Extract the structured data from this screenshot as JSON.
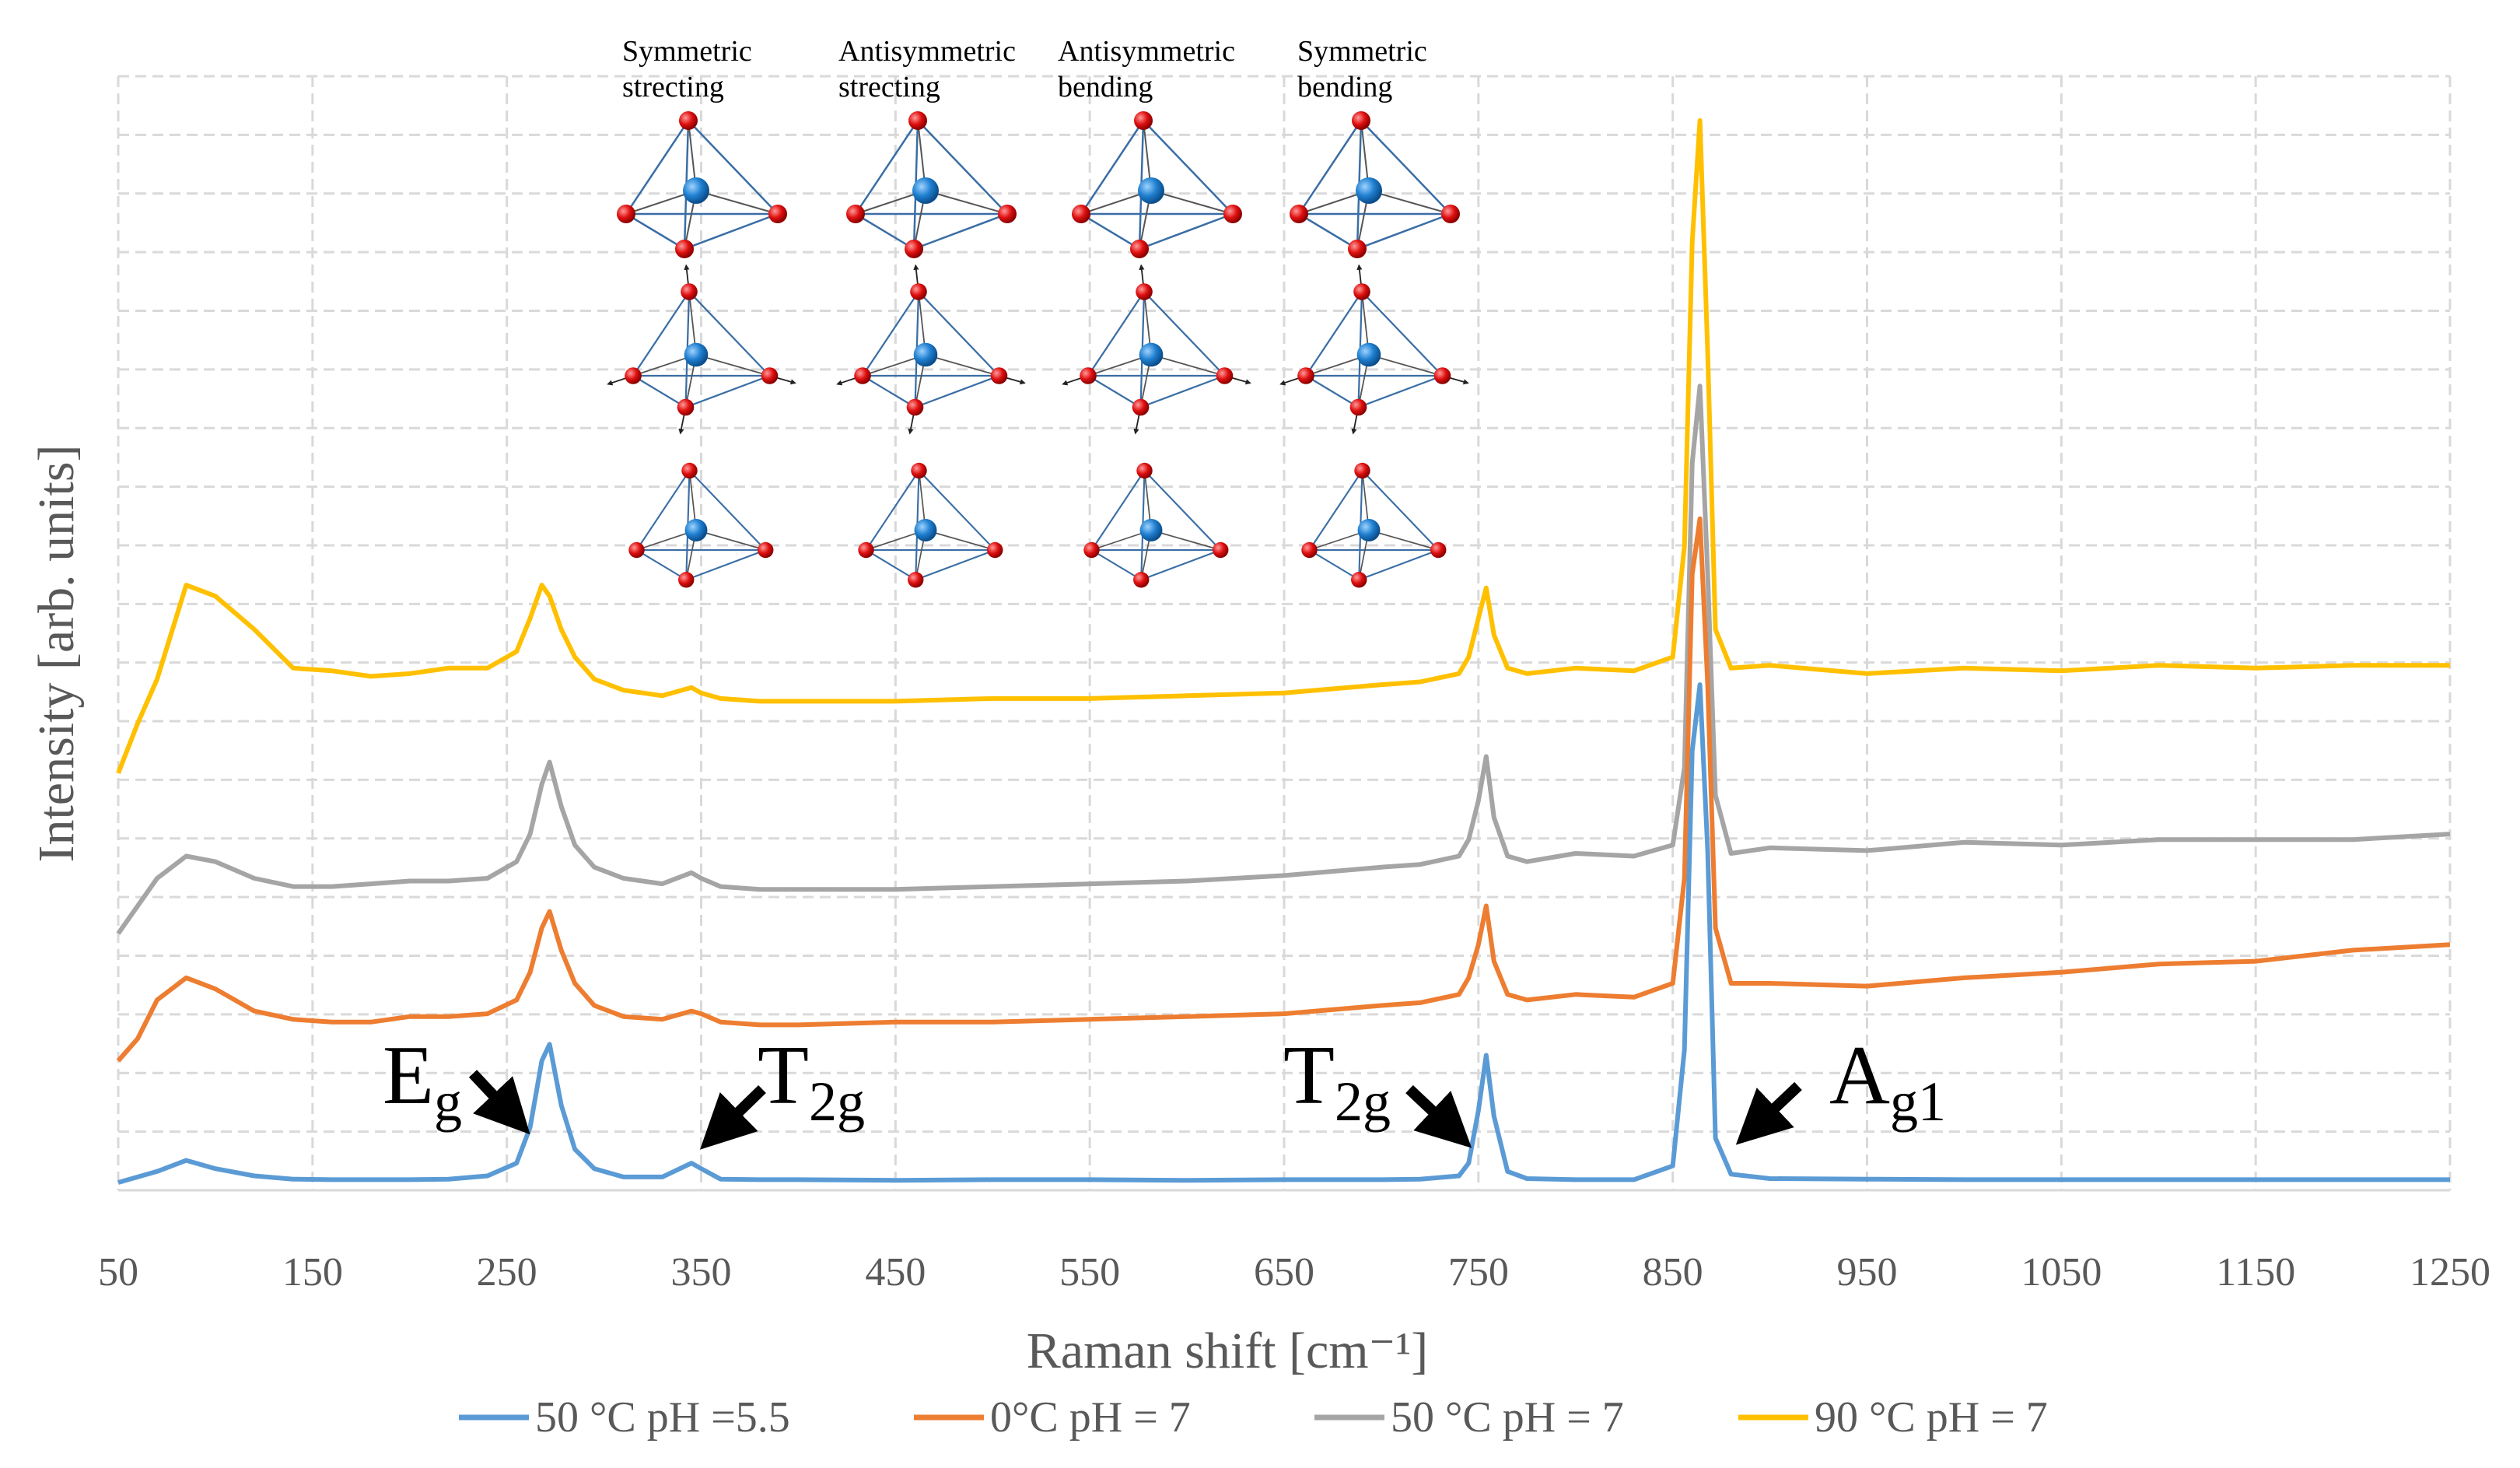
{
  "chart_data": {
    "type": "line",
    "title": "",
    "xlabel": "Raman shift [cm⁻¹]",
    "ylabel": "Intensity [arb. units]",
    "xlim": [
      50,
      1250
    ],
    "x_ticks": [
      "50",
      "150",
      "250",
      "350",
      "450",
      "550",
      "650",
      "750",
      "850",
      "950",
      "1050",
      "1150",
      "1250"
    ],
    "y_ticks_labeled": false,
    "grid": true,
    "legend_position": "bottom",
    "x": [
      50,
      60,
      70,
      85,
      100,
      120,
      140,
      160,
      180,
      200,
      220,
      240,
      255,
      262,
      268,
      272,
      278,
      285,
      295,
      310,
      330,
      345,
      350,
      360,
      380,
      400,
      450,
      500,
      550,
      600,
      650,
      700,
      720,
      740,
      745,
      750,
      754,
      758,
      765,
      775,
      800,
      830,
      850,
      856,
      860,
      864,
      868,
      872,
      880,
      900,
      950,
      1000,
      1050,
      1100,
      1150,
      1200,
      1250
    ],
    "series": [
      {
        "name": "50 °C pH =5.5",
        "color": "#5b9bd5",
        "values": [
          0.0,
          0.1,
          0.2,
          0.4,
          0.25,
          0.12,
          0.06,
          0.05,
          0.05,
          0.05,
          0.06,
          0.12,
          0.35,
          1.0,
          2.2,
          2.5,
          1.4,
          0.6,
          0.25,
          0.1,
          0.1,
          0.35,
          0.25,
          0.06,
          0.05,
          0.05,
          0.04,
          0.05,
          0.05,
          0.04,
          0.05,
          0.05,
          0.06,
          0.12,
          0.35,
          1.3,
          2.3,
          1.2,
          0.2,
          0.07,
          0.05,
          0.05,
          0.3,
          2.4,
          7.8,
          9.0,
          6.0,
          0.8,
          0.15,
          0.07,
          0.06,
          0.05,
          0.05,
          0.05,
          0.05,
          0.05,
          0.05
        ]
      },
      {
        "name": "0°C pH = 7",
        "color": "#ed7d31",
        "values": [
          2.2,
          2.6,
          3.3,
          3.7,
          3.5,
          3.1,
          2.95,
          2.9,
          2.9,
          3.0,
          3.0,
          3.05,
          3.3,
          3.8,
          4.6,
          4.9,
          4.2,
          3.6,
          3.2,
          3.0,
          2.95,
          3.1,
          3.05,
          2.9,
          2.85,
          2.85,
          2.9,
          2.9,
          2.95,
          3.0,
          3.05,
          3.2,
          3.25,
          3.4,
          3.7,
          4.3,
          5.0,
          4.0,
          3.4,
          3.3,
          3.4,
          3.35,
          3.6,
          5.5,
          11.0,
          12.0,
          9.0,
          4.6,
          3.6,
          3.6,
          3.55,
          3.7,
          3.8,
          3.95,
          4.0,
          4.2,
          4.3
        ]
      },
      {
        "name": "50 °C pH = 7",
        "color": "#a5a5a5",
        "values": [
          4.5,
          5.0,
          5.5,
          5.9,
          5.8,
          5.5,
          5.35,
          5.35,
          5.4,
          5.45,
          5.45,
          5.5,
          5.8,
          6.3,
          7.2,
          7.6,
          6.8,
          6.1,
          5.7,
          5.5,
          5.4,
          5.6,
          5.5,
          5.35,
          5.3,
          5.3,
          5.3,
          5.35,
          5.4,
          5.45,
          5.55,
          5.7,
          5.75,
          5.9,
          6.2,
          6.9,
          7.7,
          6.6,
          5.9,
          5.8,
          5.95,
          5.9,
          6.1,
          7.5,
          13.0,
          14.4,
          11.0,
          7.0,
          5.95,
          6.05,
          6.0,
          6.15,
          6.1,
          6.2,
          6.2,
          6.2,
          6.3
        ]
      },
      {
        "name": "90 °C pH = 7",
        "color": "#ffc000",
        "values": [
          7.4,
          8.3,
          9.1,
          10.8,
          10.6,
          10.0,
          9.3,
          9.25,
          9.15,
          9.2,
          9.3,
          9.3,
          9.6,
          10.2,
          10.8,
          10.6,
          10.0,
          9.5,
          9.1,
          8.9,
          8.8,
          8.95,
          8.85,
          8.75,
          8.7,
          8.7,
          8.7,
          8.75,
          8.75,
          8.8,
          8.85,
          9.0,
          9.05,
          9.2,
          9.5,
          10.2,
          10.75,
          9.9,
          9.3,
          9.2,
          9.3,
          9.25,
          9.5,
          11.5,
          17.0,
          19.2,
          15.0,
          10.0,
          9.3,
          9.35,
          9.2,
          9.3,
          9.25,
          9.35,
          9.3,
          9.35,
          9.35
        ]
      }
    ],
    "peak_annotations": [
      {
        "main": "E",
        "sub": "g"
      },
      {
        "main": "T",
        "sub": "2g"
      },
      {
        "main": "T",
        "sub": "2g"
      },
      {
        "main": "A",
        "sub": "g1"
      }
    ],
    "vibration_mode_labels": [
      {
        "line1": "Symmetric",
        "line2": "strecting"
      },
      {
        "line1": "Antisymmetric",
        "line2": "strecting"
      },
      {
        "line1": "Antisymmetric",
        "line2": "bending"
      },
      {
        "line1": "Symmetric",
        "line2": "bending"
      }
    ]
  }
}
